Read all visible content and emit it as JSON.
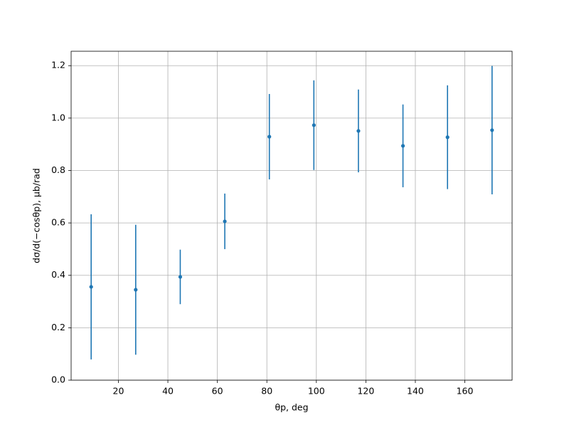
{
  "chart_data": {
    "type": "errorbar",
    "xlabel": "θp, deg",
    "ylabel": "dσ/d(−cosθp), μb/rad",
    "x": [
      9,
      27,
      45,
      63,
      81,
      99,
      117,
      135,
      153,
      171
    ],
    "series": [
      {
        "color": "#1f77b4",
        "values": [
          0.356,
          0.345,
          0.394,
          0.606,
          0.929,
          0.973,
          0.951,
          0.894,
          0.927,
          0.954
        ],
        "errors": [
          0.277,
          0.248,
          0.104,
          0.106,
          0.163,
          0.171,
          0.158,
          0.158,
          0.198,
          0.245
        ]
      }
    ],
    "xlim": [
      0.9,
      179.1
    ],
    "ylim": [
      0,
      1.255
    ],
    "xticks": [
      20,
      40,
      60,
      80,
      100,
      120,
      140,
      160
    ],
    "yticks": [
      {
        "value": 0,
        "label": "0.0"
      },
      {
        "value": 0.2,
        "label": "0.2"
      },
      {
        "value": 0.4,
        "label": "0.4"
      },
      {
        "value": 0.6,
        "label": "0.6"
      },
      {
        "value": 0.8,
        "label": "0.8"
      },
      {
        "value": 1.0,
        "label": "1.0"
      },
      {
        "value": 1.2,
        "label": "1.2"
      }
    ],
    "grid": true
  }
}
